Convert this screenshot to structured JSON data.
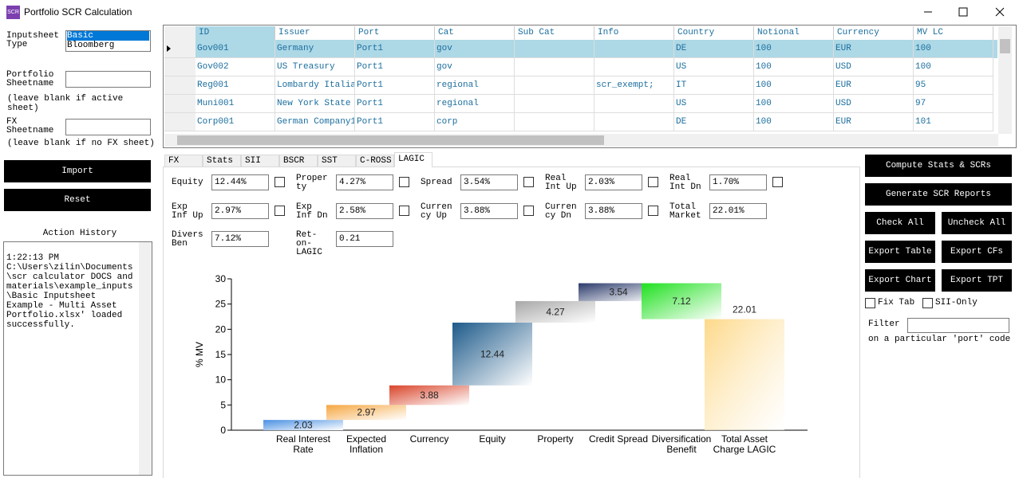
{
  "window": {
    "icon_text": "SCR",
    "title": "Portfolio SCR Calculation"
  },
  "sidebar": {
    "inputsheet_label": "Inputsheet Type",
    "inputsheet_options": [
      "Basic",
      "Bloomberg"
    ],
    "portfolio_label": "Portfolio Sheetname",
    "portfolio_hint": "(leave blank if active sheet)",
    "fx_label": "FX Sheetname",
    "fx_hint": "(leave blank if no FX sheet)",
    "import_button": "Import",
    "reset_button": "Reset",
    "history_title": "Action History",
    "history": [
      "1:22:13 PM",
      "C:\\Users\\zilin\\Documents\\scr calculator DOCS and materials\\example_inputs\\Basic Inputsheet Example - Multi Asset Portfolio.xlsx' loaded successfully."
    ]
  },
  "grid": {
    "columns": [
      "ID",
      "Issuer",
      "Port",
      "Cat",
      "Sub Cat",
      "Info",
      "Country",
      "Notional",
      "Currency",
      "MV LC"
    ],
    "rows": [
      [
        "Gov001",
        "Germany",
        "Port1",
        "gov",
        null,
        null,
        "DE",
        "100",
        "EUR",
        "100"
      ],
      [
        "Gov002",
        "US Treasury",
        "Port1",
        "gov",
        null,
        null,
        "US",
        "100",
        "USD",
        "100"
      ],
      [
        "Reg001",
        "Lombardy Italia",
        "Port1",
        "regional",
        null,
        "scr_exempt;",
        "IT",
        "100",
        "EUR",
        "95"
      ],
      [
        "Muni001",
        "New York State",
        "Port1",
        "regional",
        null,
        null,
        "US",
        "100",
        "USD",
        "97"
      ],
      [
        "Corp001",
        "German Company1",
        "Port1",
        "corp",
        null,
        null,
        "DE",
        "100",
        "EUR",
        "101"
      ]
    ]
  },
  "tabs": [
    "FX",
    "Stats",
    "SII",
    "BSCR",
    "SST",
    "C-ROSS",
    "LAGIC"
  ],
  "fields": [
    {
      "label": "Equity",
      "value": "12.44%"
    },
    {
      "label": "Property",
      "value": "4.27%"
    },
    {
      "label": "Spread",
      "value": "3.54%"
    },
    {
      "label": "Real Int Up",
      "value": "2.03%"
    },
    {
      "label": "Real Int Dn",
      "value": "1.70%"
    },
    {
      "label": "Exp Inf Up",
      "value": "2.97%"
    },
    {
      "label": "Exp Inf Dn",
      "value": "2.58%"
    },
    {
      "label": "Currency Up",
      "value": "3.88%"
    },
    {
      "label": "Currency Dn",
      "value": "3.88%"
    },
    {
      "label": "Total Market",
      "value": "22.01%"
    },
    {
      "label": "Divers Ben",
      "value": "7.12%"
    },
    {
      "label": "Ret-on-LAGIC",
      "value": "0.21"
    }
  ],
  "chart": {
    "type": "waterfall",
    "y_label": "% MV",
    "categories": [
      "Real Interest Rate",
      "Expected Inflation",
      "Currency",
      "Equity",
      "Property",
      "Credit Spread",
      "Diversification Benefit",
      "Total Asset Charge LAGIC"
    ],
    "values": [
      2.03,
      2.97,
      3.88,
      12.44,
      4.27,
      3.54,
      7.12,
      22.01
    ],
    "measures": [
      "increase",
      "increase",
      "increase",
      "increase",
      "increase",
      "increase",
      "decrease",
      "total"
    ],
    "colors": [
      "#4a90e2",
      "#f5a742",
      "#d9442a",
      "#1d5a8a",
      "#a8a8a8",
      "#2b3a6b",
      "#1fe01f",
      "#fdd98a"
    ],
    "ylim": [
      0,
      30
    ],
    "yticks": [
      0,
      5,
      10,
      15,
      20,
      25,
      30
    ]
  },
  "actions": {
    "wide_buttons": [
      "Compute Stats & SCRs",
      "Generate SCR Reports"
    ],
    "small_buttons": [
      "Check All",
      "Uncheck All",
      "Export Table",
      "Export CFs",
      "Export Chart",
      "Export TPT"
    ],
    "checkboxes": [
      "Fix Tab",
      "SII-Only"
    ],
    "filter_label": "Filter",
    "filter_hint": "on a particular 'port' code"
  }
}
